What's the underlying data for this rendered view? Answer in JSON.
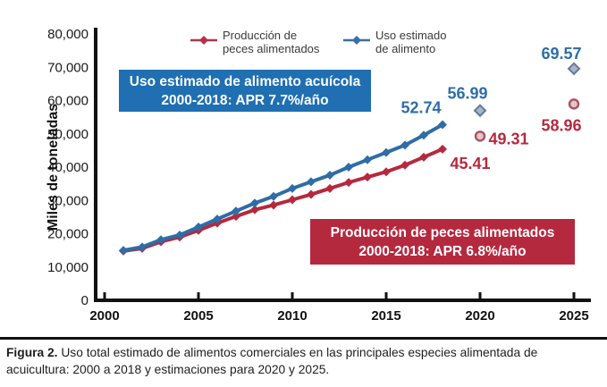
{
  "figure": {
    "caption_label": "Figura 2.",
    "caption_line1": " Uso total estimado de alimentos comerciales en las principales especies alimentada de",
    "caption_line2": "acuicultura: 2000 a 2018 y estimaciones para 2020 y 2025."
  },
  "legend": {
    "produccion": {
      "line1": "Producción de",
      "line2": "peces alimentados",
      "color": "#b5324a"
    },
    "uso": {
      "line1": "Uso estimado",
      "line2": "de alimento",
      "color": "#3a6ea8"
    }
  },
  "annotations": {
    "uso_box": {
      "line1": "Uso estimado de alimento acuícola",
      "line2": "2000-2018: APR 7.7%/año",
      "bg": "#1f6fb2"
    },
    "produccion_box": {
      "line1": "Producción de peces alimentados",
      "line2": "2000-2018: APR 6.8%/año",
      "bg": "#b5293e"
    }
  },
  "chart_data": {
    "type": "line",
    "title": "",
    "xlabel": "",
    "ylabel": "Miles de toneladas",
    "ylim": [
      0,
      80000
    ],
    "xlim": [
      1999.5,
      2026.5
    ],
    "grid": false,
    "legend_position": "top",
    "x_ticks": {
      "values": [
        2000,
        2005,
        2010,
        2015,
        2020,
        2025
      ],
      "labels": [
        "2000",
        "2005",
        "2010",
        "2015",
        "2020",
        "2025"
      ]
    },
    "y_ticks": {
      "values": [
        0,
        10000,
        20000,
        30000,
        40000,
        50000,
        60000,
        70000,
        80000
      ],
      "labels": [
        "0",
        "10,000",
        "20,000",
        "30,000",
        "40,000",
        "50,000",
        "60,000",
        "70,000",
        "80,000"
      ]
    },
    "x": [
      2001,
      2002,
      2003,
      2004,
      2005,
      2006,
      2007,
      2008,
      2009,
      2010,
      2011,
      2012,
      2013,
      2014,
      2015,
      2016,
      2017,
      2018
    ],
    "series": [
      {
        "name": "Producción de peces alimentados",
        "color": "#b5293e",
        "marker": "diamond",
        "values": [
          14800,
          15600,
          17600,
          19000,
          21000,
          23200,
          25200,
          27200,
          28600,
          30200,
          31800,
          33600,
          35400,
          37000,
          38600,
          40600,
          43000,
          45410
        ],
        "projections": [
          {
            "year": 2020,
            "value": 49310
          },
          {
            "year": 2025,
            "value": 58960
          }
        ],
        "projection_marker": {
          "shape": "circle",
          "fill": "#e3c6c9",
          "stroke": "#a85763"
        },
        "point_labels": [
          {
            "year": 2018,
            "value": 45410,
            "text": "45.41",
            "dx": 31,
            "dy": 22
          },
          {
            "year": 2020,
            "value": 49310,
            "text": "49.31",
            "dx": 32,
            "dy": 9
          },
          {
            "year": 2025,
            "value": 58960,
            "text": "58.96",
            "dx": -14,
            "dy": 30
          }
        ]
      },
      {
        "name": "Uso estimado de alimento",
        "color": "#2e6da6",
        "marker": "diamond",
        "values": [
          15000,
          16000,
          18200,
          19600,
          22000,
          24400,
          26800,
          29200,
          31200,
          33600,
          35600,
          37600,
          40000,
          42200,
          44400,
          46600,
          49600,
          52740
        ],
        "projections": [
          {
            "year": 2020,
            "value": 56990
          },
          {
            "year": 2025,
            "value": 69570
          }
        ],
        "projection_marker": {
          "shape": "diamond",
          "fill": "#a9b6c8",
          "stroke": "#64789a"
        },
        "point_labels": [
          {
            "year": 2018,
            "value": 52740,
            "text": "52.74",
            "dx": -24,
            "dy": -13
          },
          {
            "year": 2020,
            "value": 56990,
            "text": "56.99",
            "dx": -14,
            "dy": -13
          },
          {
            "year": 2025,
            "value": 69570,
            "text": "69.57",
            "dx": -14,
            "dy": -11
          }
        ]
      }
    ]
  }
}
